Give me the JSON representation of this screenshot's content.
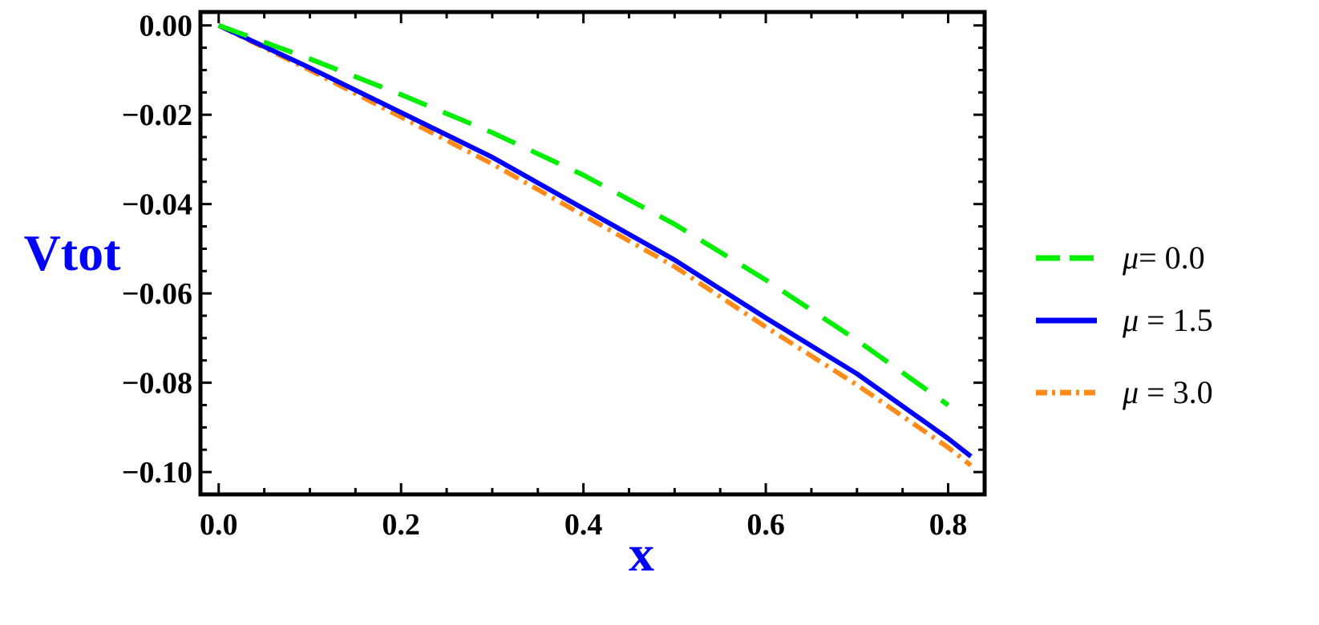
{
  "chart_data": {
    "type": "line",
    "title": "",
    "xlabel": "x",
    "ylabel": "Vtot",
    "axis_label_color": "#0000ff",
    "xlim": [
      -0.02,
      0.84
    ],
    "ylim": [
      -0.105,
      0.003
    ],
    "xticks": [
      0.0,
      0.2,
      0.4,
      0.6,
      0.8
    ],
    "xtick_labels": [
      "0.0",
      "0.2",
      "0.4",
      "0.6",
      "0.8"
    ],
    "yticks": [
      0.0,
      -0.02,
      -0.04,
      -0.06,
      -0.08,
      -0.1
    ],
    "ytick_labels": [
      "0.00",
      "−0.02",
      "−0.04",
      "−0.06",
      "−0.08",
      "−0.10"
    ],
    "grid": false,
    "legend_position": "right",
    "series": [
      {
        "name": "μ= 0.0",
        "symbol": "μ",
        "label_rest": "= 0.0",
        "color": "#00ee00",
        "style": "dashed",
        "x": [
          0.0,
          0.1,
          0.2,
          0.3,
          0.4,
          0.5,
          0.6,
          0.7,
          0.8
        ],
        "y": [
          0.0,
          -0.0075,
          -0.0155,
          -0.024,
          -0.0335,
          -0.0445,
          -0.057,
          -0.0705,
          -0.085
        ]
      },
      {
        "name": "μ = 1.5",
        "symbol": "μ",
        "label_rest": " = 1.5",
        "color": "#0000ff",
        "style": "solid",
        "x": [
          0.0,
          0.1,
          0.2,
          0.3,
          0.4,
          0.5,
          0.6,
          0.7,
          0.8,
          0.825
        ],
        "y": [
          0.0,
          -0.0095,
          -0.0195,
          -0.0295,
          -0.041,
          -0.0525,
          -0.0655,
          -0.078,
          -0.0925,
          -0.0965
        ]
      },
      {
        "name": "μ = 3.0",
        "symbol": "μ",
        "label_rest": " = 3.0",
        "color": "#ff8c1a",
        "style": "dashdot",
        "x": [
          0.0,
          0.1,
          0.2,
          0.3,
          0.4,
          0.5,
          0.6,
          0.7,
          0.8,
          0.825
        ],
        "y": [
          0.0,
          -0.01,
          -0.0205,
          -0.031,
          -0.0425,
          -0.054,
          -0.0675,
          -0.0805,
          -0.0945,
          -0.0985
        ]
      }
    ]
  }
}
